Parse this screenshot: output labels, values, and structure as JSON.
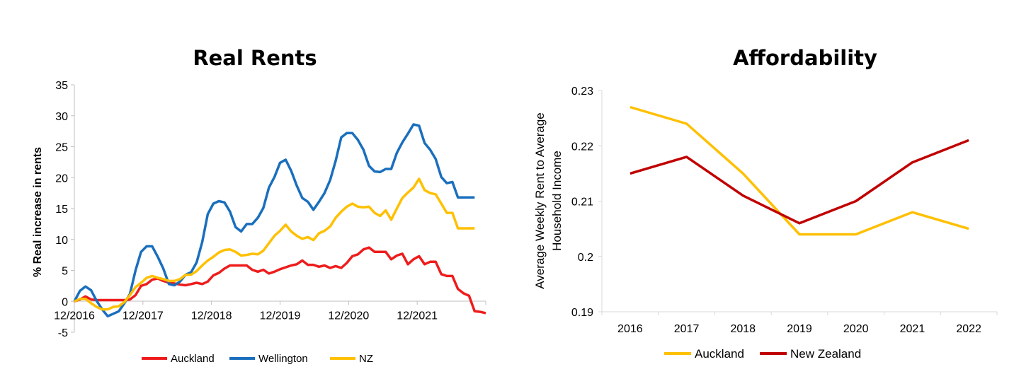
{
  "chart_data": [
    {
      "type": "line",
      "title": "Real Rents",
      "xlabel": "",
      "ylabel": "% Real increase in rents",
      "ylim": [
        -5,
        35
      ],
      "yticks": [
        "-5",
        "0",
        "5",
        "10",
        "15",
        "20",
        "25",
        "30",
        "35"
      ],
      "xticks": [
        "12/2016",
        "12/2017",
        "12/2018",
        "12/2019",
        "12/2020",
        "12/2021"
      ],
      "x_start": "12/2016",
      "x_end": "12/2022",
      "grid": false,
      "legend": "bottom",
      "series": [
        {
          "name": "Auckland",
          "color": "#ee1c1c",
          "values": [
            0,
            0.3,
            0.8,
            0.3,
            0.2,
            0.2,
            0.2,
            0.2,
            0.2,
            0.2,
            0.3,
            1.0,
            2.5,
            2.8,
            3.5,
            3.7,
            3.3,
            3.0,
            2.9,
            2.7,
            2.6,
            2.8,
            3.0,
            2.8,
            3.2,
            4.2,
            4.6,
            5.3,
            5.8,
            5.8,
            5.8,
            5.8,
            5.1,
            4.8,
            5.1,
            4.5,
            4.8,
            5.2,
            5.5,
            5.8,
            6.0,
            6.6,
            5.9,
            5.9,
            5.6,
            5.8,
            5.4,
            5.7,
            5.4,
            6.2,
            7.3,
            7.6,
            8.4,
            8.7,
            8.0,
            8.0,
            8.0,
            6.8,
            7.4,
            7.7,
            6.0,
            6.8,
            7.3,
            6.0,
            6.4,
            6.4,
            4.4,
            4.1,
            4.1,
            2.0,
            1.3,
            0.9,
            -1.6,
            -1.7,
            -1.9
          ]
        },
        {
          "name": "Wellington",
          "color": "#1a6fbd",
          "values": [
            0,
            1.7,
            2.4,
            1.8,
            0.1,
            -1.3,
            -2.4,
            -2.0,
            -1.6,
            -0.3,
            1.2,
            5.0,
            8.0,
            8.9,
            8.9,
            7.2,
            5.3,
            2.8,
            2.6,
            3.2,
            4.3,
            4.7,
            6.3,
            9.6,
            14.1,
            15.8,
            16.2,
            16.0,
            14.5,
            12.0,
            11.3,
            12.5,
            12.5,
            13.5,
            15.1,
            18.4,
            20.1,
            22.4,
            22.9,
            21.1,
            18.7,
            16.7,
            16.1,
            14.8,
            16.1,
            17.5,
            19.6,
            22.7,
            26.5,
            27.2,
            27.2,
            26.1,
            24.5,
            21.9,
            21.0,
            20.9,
            21.4,
            21.4,
            24.0,
            25.7,
            27.1,
            28.6,
            28.4,
            25.6,
            24.5,
            23.0,
            20.1,
            19.1,
            19.3,
            16.8,
            16.8,
            16.8,
            16.8
          ]
        },
        {
          "name": "NZ",
          "color": "#ffc000",
          "values": [
            0,
            0.4,
            0.4,
            -0.3,
            -0.9,
            -1.3,
            -1.3,
            -0.9,
            -0.8,
            -0.1,
            1.0,
            2.3,
            3.0,
            3.8,
            4.1,
            3.8,
            3.6,
            3.3,
            3.3,
            3.6,
            4.3,
            4.3,
            4.9,
            5.8,
            6.6,
            7.2,
            7.9,
            8.3,
            8.4,
            8.0,
            7.4,
            7.5,
            7.7,
            7.6,
            8.2,
            9.4,
            10.6,
            11.4,
            12.4,
            11.3,
            10.6,
            10.1,
            10.4,
            9.9,
            11.0,
            11.4,
            12.1,
            13.5,
            14.5,
            15.3,
            15.8,
            15.3,
            15.2,
            15.3,
            14.3,
            13.8,
            14.7,
            13.2,
            15.0,
            16.7,
            17.6,
            18.4,
            19.8,
            18.0,
            17.5,
            17.3,
            15.8,
            14.3,
            14.3,
            11.8,
            11.8,
            11.8,
            11.8
          ]
        }
      ]
    },
    {
      "type": "line",
      "title": "Affordability",
      "xlabel": "",
      "ylabel": "Average Weekly Rent to Average Household Income",
      "ylabel_lines": [
        "Average Weekly Rent to Average",
        "Household Income"
      ],
      "ylim": [
        0.19,
        0.23
      ],
      "yticks": [
        "0.19",
        "0.2",
        "0.21",
        "0.22",
        "0.23"
      ],
      "categories": [
        "2016",
        "2017",
        "2018",
        "2019",
        "2020",
        "2021",
        "2022"
      ],
      "grid": false,
      "legend": "bottom",
      "series": [
        {
          "name": "Auckland",
          "color": "#ffc000",
          "values": [
            0.227,
            0.224,
            0.215,
            0.204,
            0.204,
            0.208,
            0.205
          ]
        },
        {
          "name": "New Zealand",
          "color": "#c00000",
          "values": [
            0.215,
            0.218,
            0.211,
            0.206,
            0.21,
            0.217,
            0.221
          ]
        }
      ]
    }
  ]
}
